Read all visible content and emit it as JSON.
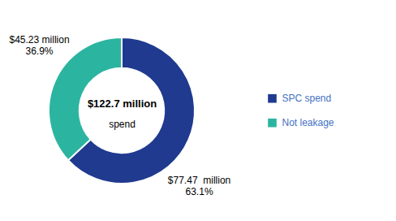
{
  "chart_data": {
    "type": "pie",
    "categories": [
      "SPC spend",
      "Not leakage"
    ],
    "values": [
      63.1,
      36.9
    ],
    "colors": [
      "#1F3A8F",
      "#2BB5A0"
    ],
    "center_text": [
      "$122.7 million",
      "spend"
    ],
    "annotations": [
      "$77.47  million\n63.1%",
      "$45.23 million\n36.9%"
    ],
    "legend": "right"
  }
}
